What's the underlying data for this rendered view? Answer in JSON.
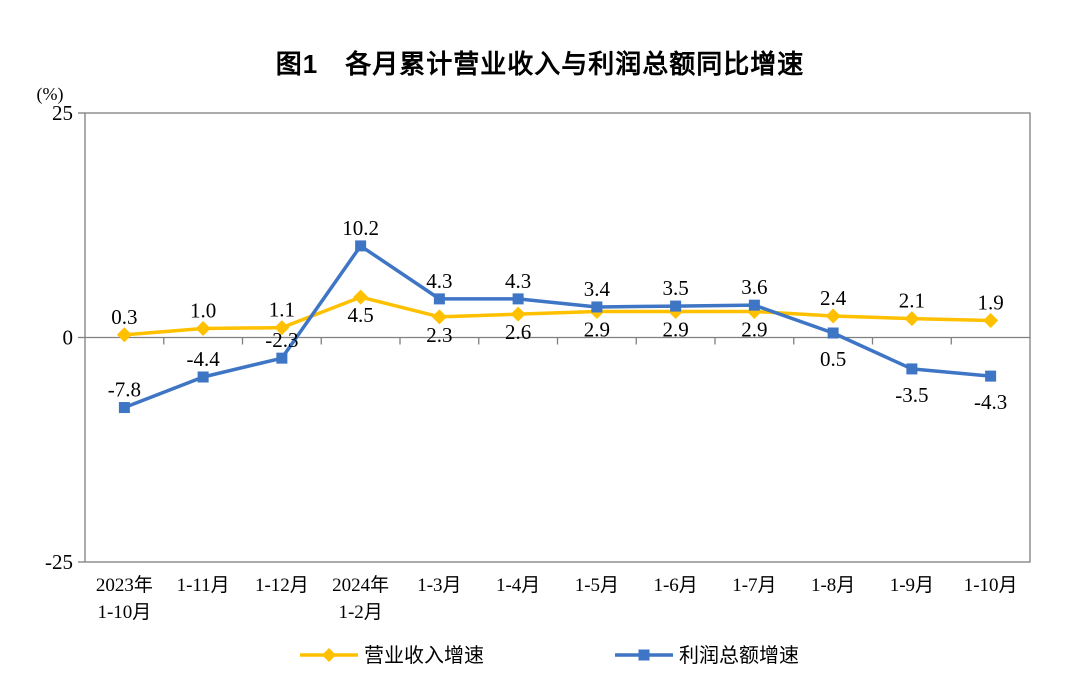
{
  "page": {
    "title": "图1　各月累计营业收入与利润总额同比增速",
    "y_axis_unit": "(%)"
  },
  "colors": {
    "axis": "#808080",
    "text": "#000000",
    "revenue_series": "#FFC000",
    "profit_series": "#3E75C4"
  },
  "chart_data": {
    "type": "line",
    "title": "图1　各月累计营业收入与利润总额同比增速",
    "ylabel": "(%)",
    "ylim": [
      -25,
      25
    ],
    "yticks": [
      25,
      0,
      -25
    ],
    "grid": false,
    "legend_position": "bottom",
    "categories": [
      [
        "2023年",
        "1-10月"
      ],
      [
        "1-11月"
      ],
      [
        "1-12月"
      ],
      [
        "2024年",
        "1-2月"
      ],
      [
        "1-3月"
      ],
      [
        "1-4月"
      ],
      [
        "1-5月"
      ],
      [
        "1-6月"
      ],
      [
        "1-7月"
      ],
      [
        "1-8月"
      ],
      [
        "1-9月"
      ],
      [
        "1-10月"
      ]
    ],
    "series": [
      {
        "id": "revenue",
        "name": "营业收入增速",
        "color": "#FFC000",
        "marker": "diamond",
        "values": [
          0.3,
          1.0,
          1.1,
          4.5,
          2.3,
          2.6,
          2.9,
          2.9,
          2.9,
          2.4,
          2.1,
          1.9
        ],
        "label_side": [
          "above",
          "above",
          "above",
          "below",
          "below",
          "below",
          "below",
          "below",
          "below",
          "above",
          "above",
          "above"
        ]
      },
      {
        "id": "profit",
        "name": "利润总额增速",
        "color": "#3E75C4",
        "marker": "square",
        "values": [
          -7.8,
          -4.4,
          -2.3,
          10.2,
          4.3,
          4.3,
          3.4,
          3.5,
          3.6,
          0.5,
          -3.5,
          -4.3
        ],
        "label_side": [
          "above",
          "above",
          "above",
          "above",
          "above",
          "above",
          "above",
          "above",
          "above",
          "below",
          "below",
          "below"
        ]
      }
    ]
  }
}
